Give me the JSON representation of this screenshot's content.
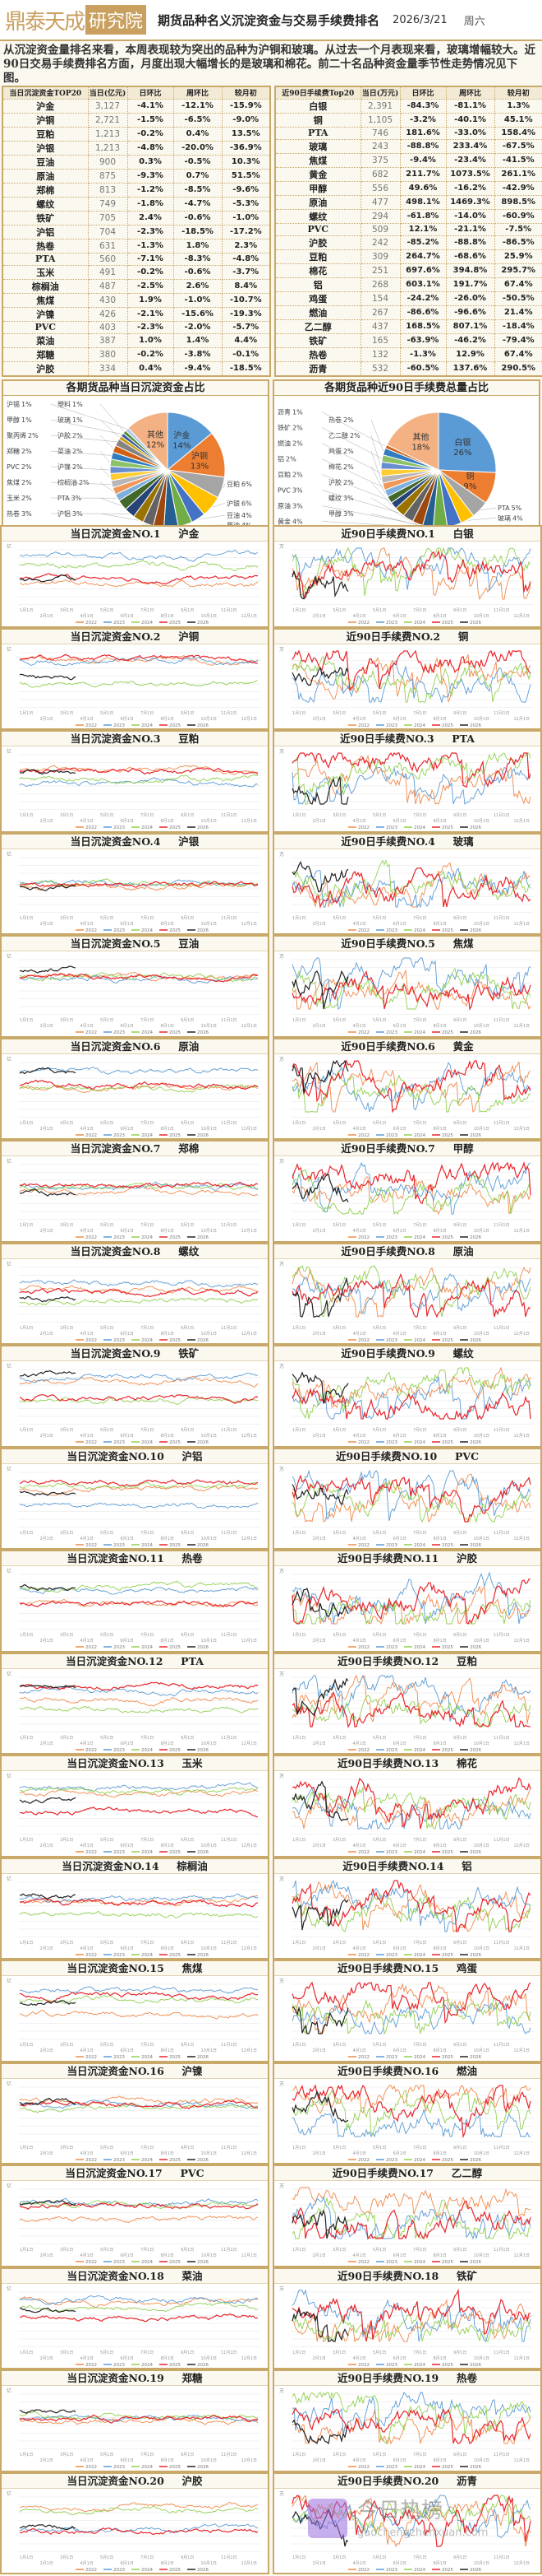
{
  "header": {
    "logo_text": "鼎泰天成",
    "logo_badge": "研究院",
    "title": "期货品种名义沉淀资金与交易手续费排名",
    "date": "2026/3/21",
    "weekday": "周六"
  },
  "intro": "从沉淀资金量排名来看，本周表现较为突出的品种为沪铜和玻璃。从过去一个月表现来看，玻璃增幅较大。近90日交易手续费排名方面，月度出现大幅增长的是玻璃和棉花。前二十名品种资金量季节性走势情况见下图。",
  "capital_table": {
    "headers": [
      "当日沉淀资金TOP20",
      "当日(亿元)",
      "日环比",
      "周环比",
      "较月初"
    ],
    "rows": [
      [
        "沪金",
        "3,127",
        "-4.1%",
        "-12.1%",
        "-15.9%"
      ],
      [
        "沪铜",
        "2,721",
        "-1.5%",
        "-6.5%",
        "-9.0%"
      ],
      [
        "豆粕",
        "1,213",
        "-0.2%",
        "0.4%",
        "13.5%"
      ],
      [
        "沪银",
        "1,213",
        "-4.8%",
        "-20.0%",
        "-36.9%"
      ],
      [
        "豆油",
        "900",
        "0.3%",
        "-0.5%",
        "10.3%"
      ],
      [
        "原油",
        "875",
        "-9.3%",
        "0.7%",
        "51.5%"
      ],
      [
        "郑棉",
        "813",
        "-1.2%",
        "-8.5%",
        "-9.6%"
      ],
      [
        "螺纹",
        "749",
        "-1.8%",
        "-4.7%",
        "-5.3%"
      ],
      [
        "铁矿",
        "705",
        "2.4%",
        "-0.6%",
        "-1.0%"
      ],
      [
        "沪铝",
        "704",
        "-2.3%",
        "-18.5%",
        "-17.2%"
      ],
      [
        "热卷",
        "631",
        "-1.3%",
        "1.8%",
        "2.3%"
      ],
      [
        "PTA",
        "560",
        "-7.1%",
        "-8.3%",
        "-4.8%"
      ],
      [
        "玉米",
        "491",
        "-0.2%",
        "-0.6%",
        "-3.7%"
      ],
      [
        "棕榈油",
        "487",
        "-2.5%",
        "2.6%",
        "8.4%"
      ],
      [
        "焦煤",
        "430",
        "1.9%",
        "-1.0%",
        "-10.7%"
      ],
      [
        "沪镍",
        "426",
        "-2.1%",
        "-15.6%",
        "-19.3%"
      ],
      [
        "PVC",
        "403",
        "-2.3%",
        "-2.0%",
        "-5.7%"
      ],
      [
        "菜油",
        "387",
        "1.0%",
        "1.4%",
        "4.4%"
      ],
      [
        "郑糖",
        "380",
        "-0.2%",
        "-3.8%",
        "-0.1%"
      ],
      [
        "沪胶",
        "334",
        "0.4%",
        "-9.4%",
        "-18.5%"
      ]
    ]
  },
  "fee_table": {
    "headers": [
      "近90日手续费Top20",
      "当日(万元)",
      "日环比",
      "周环比",
      "较月初"
    ],
    "rows": [
      [
        "白银",
        "2,391",
        "-84.3%",
        "-81.1%",
        "1.3%"
      ],
      [
        "铜",
        "1,105",
        "-3.2%",
        "-40.1%",
        "45.1%"
      ],
      [
        "PTA",
        "746",
        "181.6%",
        "-33.0%",
        "158.4%"
      ],
      [
        "玻璃",
        "243",
        "-88.8%",
        "233.4%",
        "-67.5%"
      ],
      [
        "焦煤",
        "375",
        "-9.4%",
        "-23.4%",
        "-41.5%"
      ],
      [
        "黄金",
        "682",
        "211.7%",
        "1073.5%",
        "261.1%"
      ],
      [
        "甲醇",
        "556",
        "49.6%",
        "-16.2%",
        "-42.9%"
      ],
      [
        "原油",
        "477",
        "498.1%",
        "1469.3%",
        "898.5%"
      ],
      [
        "螺纹",
        "294",
        "-61.8%",
        "-14.0%",
        "-60.9%"
      ],
      [
        "PVC",
        "509",
        "12.1%",
        "-21.1%",
        "-7.5%"
      ],
      [
        "沪胶",
        "242",
        "-85.2%",
        "-88.8%",
        "-86.5%"
      ],
      [
        "豆粕",
        "309",
        "264.7%",
        "-68.6%",
        "25.9%"
      ],
      [
        "棉花",
        "251",
        "697.6%",
        "394.8%",
        "295.7%"
      ],
      [
        "铝",
        "268",
        "603.1%",
        "191.7%",
        "67.4%"
      ],
      [
        "鸡蛋",
        "154",
        "-24.2%",
        "-26.0%",
        "-50.5%"
      ],
      [
        "燃油",
        "267",
        "-86.6%",
        "-96.6%",
        "21.4%"
      ],
      [
        "乙二醇",
        "437",
        "168.5%",
        "807.1%",
        "-18.4%"
      ],
      [
        "铁矿",
        "165",
        "-63.9%",
        "-46.2%",
        "-79.4%"
      ],
      [
        "热卷",
        "132",
        "-1.3%",
        "12.9%",
        "67.4%"
      ],
      [
        "沥青",
        "532",
        "-60.5%",
        "137.6%",
        "290.5%"
      ]
    ]
  },
  "chart_data": [
    {
      "type": "pie",
      "title": "各期货品种当日沉淀资金占比",
      "labels": [
        "沪金",
        "沪铜",
        "豆粕",
        "沪银",
        "豆油",
        "原油",
        "郑棉",
        "螺纹",
        "铁矿",
        "沪铝",
        "热卷",
        "PTA",
        "玉米",
        "棕榈油",
        "焦煤",
        "沪镍",
        "PVC",
        "菜油",
        "郑糖",
        "沪胶",
        "聚丙烯",
        "玻璃",
        "甲醇",
        "塑料",
        "沪锡",
        "其他"
      ],
      "values": [
        14,
        13,
        6,
        6,
        4,
        4,
        4,
        3,
        3,
        3,
        3,
        3,
        2,
        2,
        2,
        2,
        2,
        2,
        2,
        2,
        2,
        1,
        1,
        1,
        1,
        12
      ]
    },
    {
      "type": "pie",
      "title": "各期货品种近90日手续费总量占比",
      "labels": [
        "白银",
        "铜",
        "PTA",
        "玻璃",
        "焦煤",
        "黄金",
        "甲醇",
        "原油",
        "螺纹",
        "PVC",
        "沪胶",
        "豆粕",
        "棉花",
        "铝",
        "鸡蛋",
        "燃油",
        "乙二醇",
        "铁矿",
        "热卷",
        "沥青",
        "其他"
      ],
      "values": [
        26,
        9,
        5,
        4,
        4,
        4,
        3,
        3,
        3,
        3,
        2,
        2,
        2,
        2,
        2,
        2,
        2,
        2,
        2,
        1,
        18
      ]
    },
    {
      "type": "line",
      "title_prefix_left": "当日沉淀资金NO.",
      "title_prefix_right": "近90日手续费NO.",
      "unit_left": "亿",
      "unit_right": "万",
      "legend": [
        "2022",
        "2023",
        "2024",
        "2025",
        "2026"
      ],
      "series_colors": [
        "#f08a4b",
        "#5b9bd5",
        "#92d050",
        "#e8262d",
        "#222222"
      ],
      "x_ticks": [
        "1月1日",
        "2月1日",
        "3月1日",
        "4月1日",
        "5月1日",
        "6月1日",
        "7月1日",
        "8月1日",
        "9月1日",
        "10月1日",
        "11月1日",
        "12月1日"
      ]
    }
  ],
  "pie_colors": [
    "#5b9bd5",
    "#ed7d31",
    "#a5a5a5",
    "#ffc000",
    "#4472c4",
    "#70ad47",
    "#255e91",
    "#9e480e",
    "#636363",
    "#997300",
    "#264478",
    "#43682b",
    "#7cafdd",
    "#f1975a",
    "#b7b7b7",
    "#ffcd33",
    "#698ed0",
    "#8cc168",
    "#327dc2",
    "#d26012",
    "#848484",
    "#cc9a00",
    "#335aa1",
    "#5a8a39",
    "#a9c9ea"
  ],
  "other_color": "#f4b183",
  "watermark": {
    "title": "今日热榜",
    "url": "gaochengzhenxuan.com"
  }
}
